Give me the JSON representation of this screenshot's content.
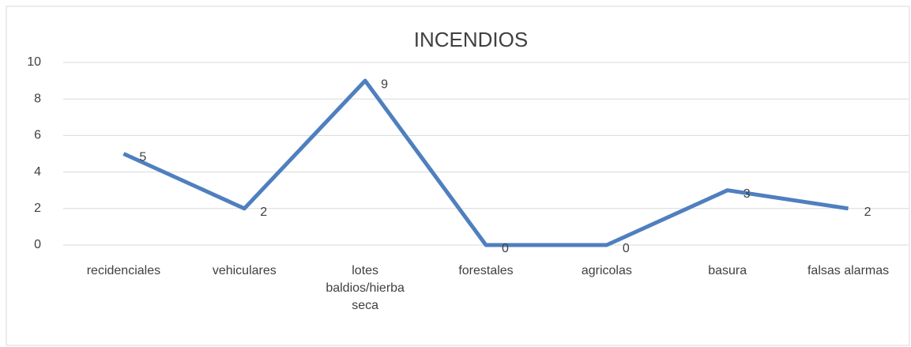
{
  "chart_data": {
    "type": "line",
    "title": "INCENDIOS",
    "categories": [
      "recidenciales",
      "vehiculares",
      "lotes baldios/hierba seca",
      "forestales",
      "agricolas",
      "basura",
      "falsas alarmas"
    ],
    "series": [
      {
        "name": "INCENDIOS",
        "color": "#4f7fbf",
        "values": [
          5,
          2,
          9,
          0,
          0,
          3,
          2
        ]
      }
    ],
    "ylim": [
      0,
      10
    ],
    "yticks": [
      0,
      2,
      4,
      6,
      8,
      10
    ],
    "grid": true
  }
}
